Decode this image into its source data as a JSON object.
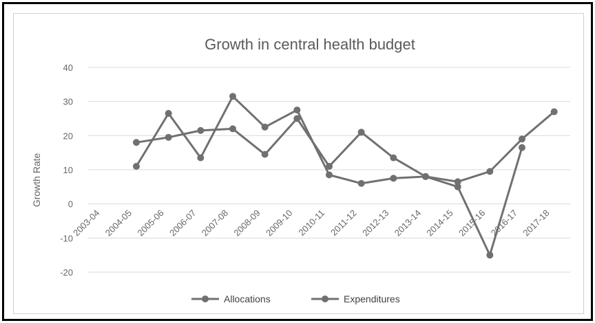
{
  "chart_data": {
    "type": "line",
    "title": "Growth in central health budget",
    "ylabel": "Growth Rate",
    "xlabel": "",
    "ylim": [
      -20,
      40
    ],
    "yticks": [
      -20,
      -10,
      0,
      10,
      20,
      30,
      40
    ],
    "grid": true,
    "legend_position": "bottom",
    "categories": [
      "2003-04",
      "2004-05",
      "2005-06",
      "2006-07",
      "2007-08",
      "2008-09",
      "2009-10",
      "2010-11",
      "2011-12",
      "2012-13",
      "2013-14",
      "2014-15",
      "2015-16",
      "2016-17",
      "2017-18"
    ],
    "series": [
      {
        "name": "Allocations",
        "color": "#707070",
        "values": [
          null,
          18,
          19.5,
          21.5,
          22,
          14.5,
          25,
          11,
          21,
          13.5,
          8,
          6.5,
          9.5,
          19,
          27
        ]
      },
      {
        "name": "Expenditures",
        "color": "#707070",
        "values": [
          null,
          11,
          26.5,
          13.5,
          31.5,
          22.5,
          27.5,
          8.5,
          6,
          7.5,
          8,
          5,
          -15,
          16.5,
          null
        ]
      }
    ]
  }
}
